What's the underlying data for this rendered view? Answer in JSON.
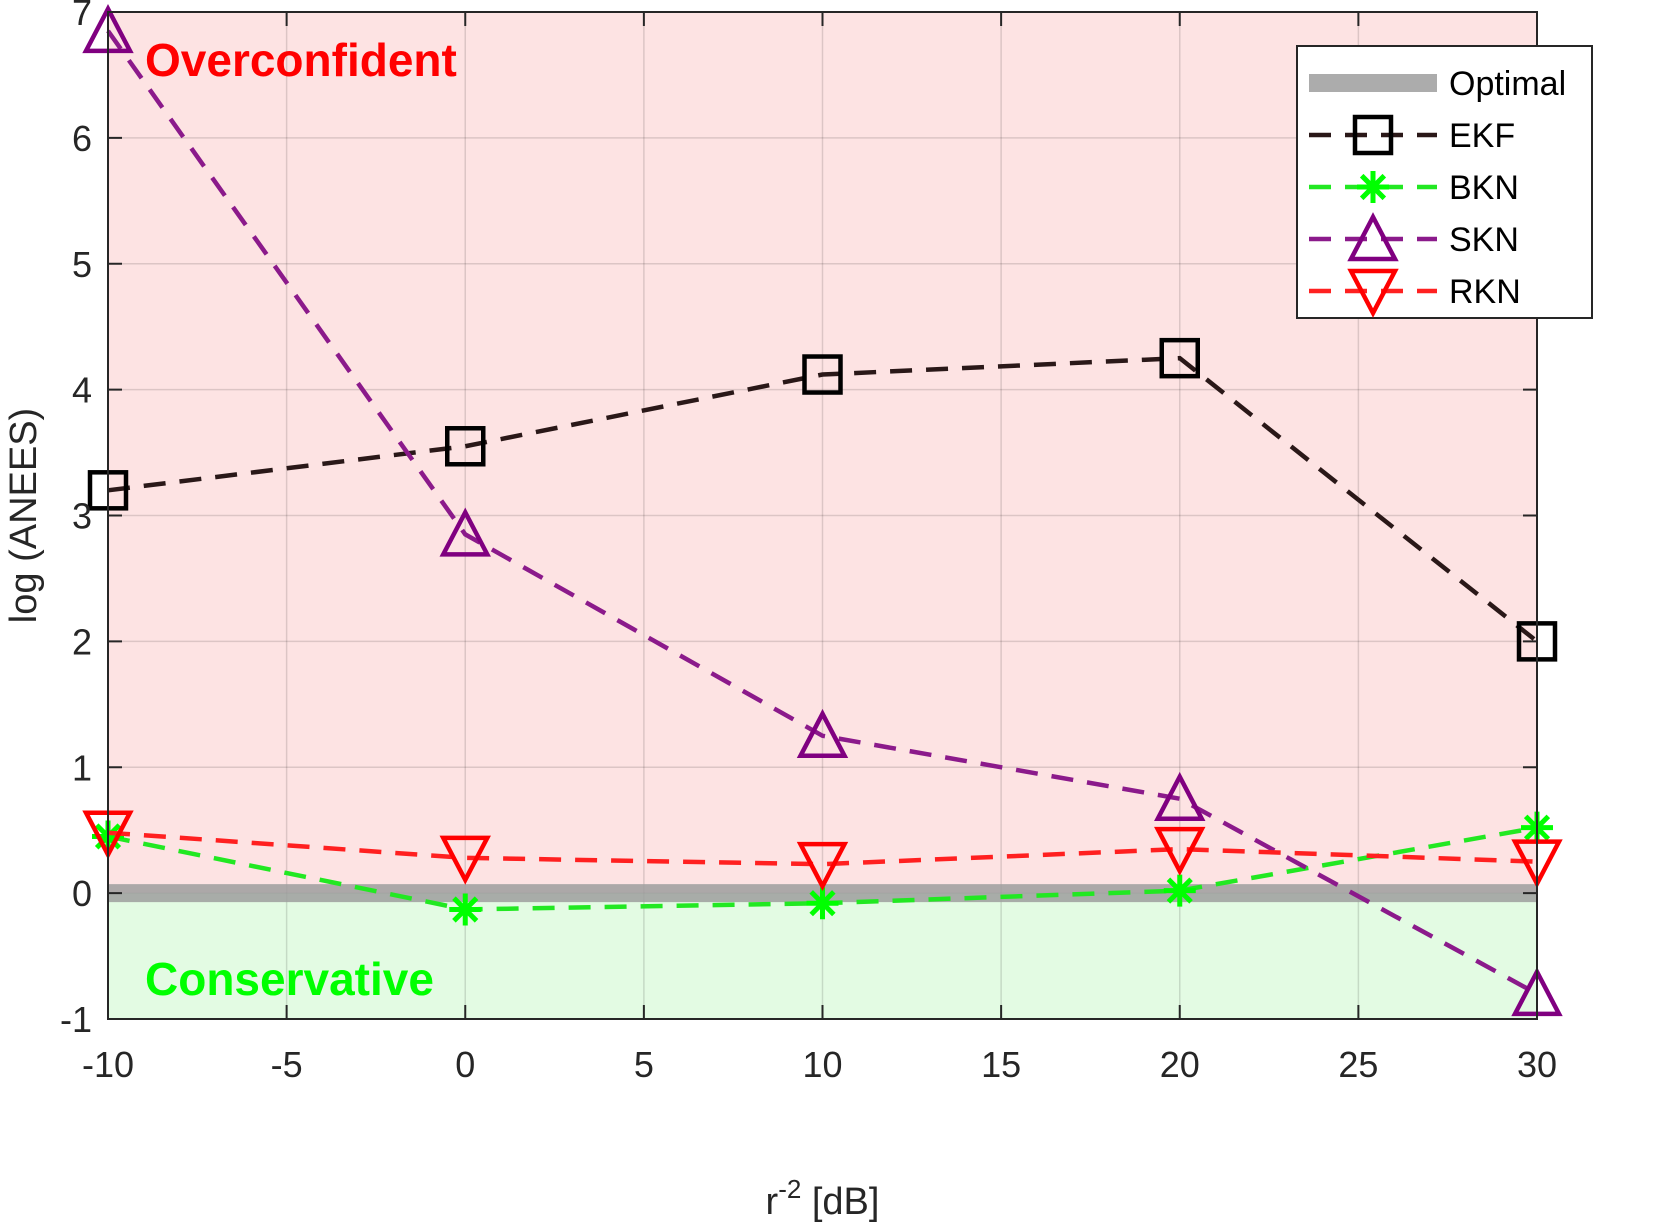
{
  "chart_data": {
    "type": "line",
    "xlabel": {
      "base": "r",
      "superscript": "-2",
      "suffix": " [dB]"
    },
    "ylabel": "log (ANEES)",
    "xlim": [
      -10,
      30
    ],
    "ylim": [
      -1,
      7
    ],
    "xticks": [
      -10,
      -5,
      0,
      5,
      10,
      15,
      20,
      25,
      30
    ],
    "yticks": [
      -1,
      0,
      1,
      2,
      3,
      4,
      5,
      6,
      7
    ],
    "grid": true,
    "legend_position": "top-right",
    "regions": [
      {
        "label": "Overconfident",
        "y_from": 0,
        "y_to": 7,
        "fill": "#fde3e3",
        "text_color": "#ff0000"
      },
      {
        "label": "Conservative",
        "y_from": -1,
        "y_to": 0,
        "fill": "#e3fbe3",
        "text_color": "#00ff00"
      }
    ],
    "optimal": {
      "name": "Optimal",
      "y": 0,
      "color": "#9e9e9e"
    },
    "x": [
      -10,
      0,
      10,
      20,
      30
    ],
    "series": [
      {
        "name": "EKF",
        "color": "#000000",
        "line_color": "#2a1818",
        "marker": "square",
        "values": [
          3.2,
          3.55,
          4.12,
          4.25,
          2.0
        ]
      },
      {
        "name": "BKN",
        "color": "#00ff00",
        "line_color": "#22e822",
        "marker": "star",
        "values": [
          0.45,
          -0.13,
          -0.08,
          0.02,
          0.52
        ]
      },
      {
        "name": "SKN",
        "color": "#800080",
        "line_color": "#8b1a8b",
        "marker": "triangle-up",
        "values": [
          6.85,
          2.85,
          1.25,
          0.75,
          -0.8
        ]
      },
      {
        "name": "RKN",
        "color": "#ff0000",
        "line_color": "#ff2020",
        "marker": "triangle-down",
        "values": [
          0.48,
          0.28,
          0.23,
          0.35,
          0.25
        ]
      }
    ]
  }
}
